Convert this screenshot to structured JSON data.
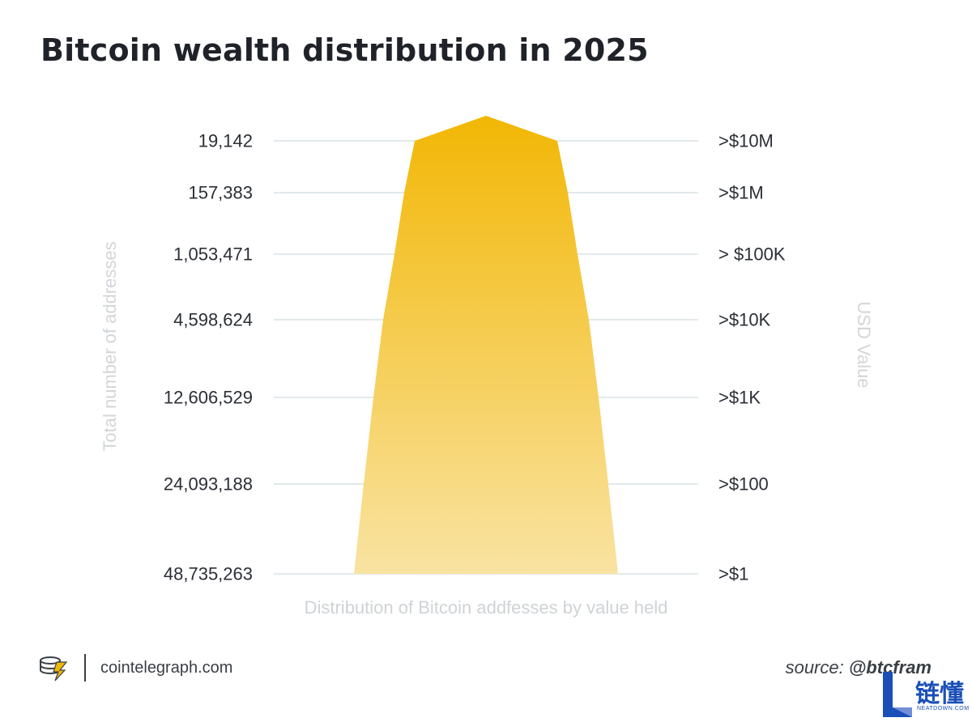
{
  "title": "Bitcoin wealth distribution in 2025",
  "chart_data": {
    "type": "pyramid",
    "title": "Bitcoin wealth distribution in 2025",
    "xlabel": "Distribution of Bitcoin addfesses by value held",
    "ylabel_left": "Total number of addresses",
    "ylabel_right": "USD Value",
    "tiers": [
      {
        "addresses": "19,142",
        "usd": ">$10M"
      },
      {
        "addresses": "157,383",
        "usd": ">$1M"
      },
      {
        "addresses": "1,053,471",
        "usd": "> $100K"
      },
      {
        "addresses": "4,598,624",
        "usd": ">$10K"
      },
      {
        "addresses": "12,606,529",
        "usd": ">$1K"
      },
      {
        "addresses": "24,093,188",
        "usd": ">$100"
      },
      {
        "addresses": "48,735,263",
        "usd": ">$1"
      }
    ],
    "colors": {
      "top": "#f2b705",
      "bottom": "#f9e3a2",
      "grid": "#d9e2e6",
      "tick_text": "#2b2f36"
    }
  },
  "footer": {
    "site": "cointelegraph.com",
    "source_label": "source:",
    "source_handle": "@btcfram",
    "logo_icon": "cointelegraph-logo-icon"
  },
  "watermark": {
    "text": "链懂",
    "sub": "NEATDOWN.COM",
    "icon": "neatdown-logo-icon"
  }
}
